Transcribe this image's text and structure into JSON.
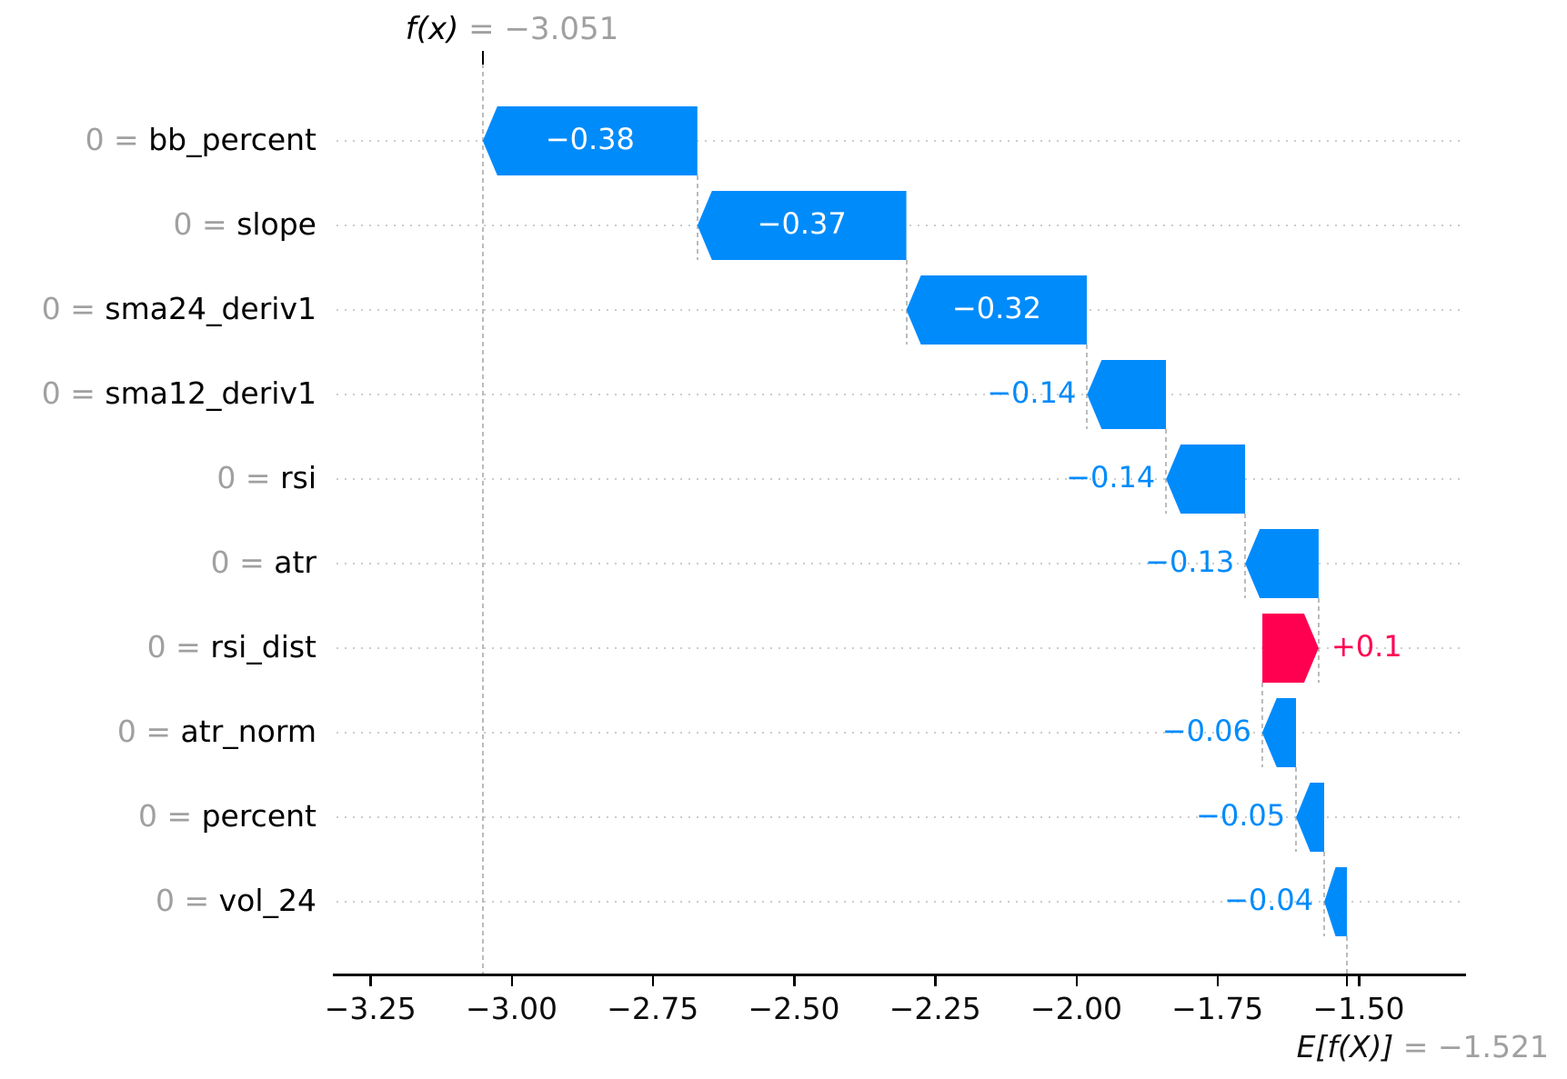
{
  "title": {
    "fx_name": "f(x)",
    "fx_eq": " = −3.051"
  },
  "base_label": {
    "e_name": "E[f(X)]",
    "e_eq": " = −1.521"
  },
  "chart_data": {
    "type": "waterfall",
    "title": "f(x) = −3.051",
    "fx_value": -3.051,
    "base_value": -1.521,
    "features": [
      {
        "prefix": "0 = ",
        "name": "bb_percent",
        "value": -0.38,
        "display": "−0.38"
      },
      {
        "prefix": "0 = ",
        "name": "slope",
        "value": -0.37,
        "display": "−0.37"
      },
      {
        "prefix": "0 = ",
        "name": "sma24_deriv1",
        "value": -0.32,
        "display": "−0.32"
      },
      {
        "prefix": "0 = ",
        "name": "sma12_deriv1",
        "value": -0.14,
        "display": "−0.14"
      },
      {
        "prefix": "0 = ",
        "name": "rsi",
        "value": -0.14,
        "display": "−0.14"
      },
      {
        "prefix": "0 = ",
        "name": "atr",
        "value": -0.13,
        "display": "−0.13"
      },
      {
        "prefix": "0 = ",
        "name": "rsi_dist",
        "value": 0.1,
        "display": "+0.1"
      },
      {
        "prefix": "0 = ",
        "name": "atr_norm",
        "value": -0.06,
        "display": "−0.06"
      },
      {
        "prefix": "0 = ",
        "name": "percent",
        "value": -0.05,
        "display": "−0.05"
      },
      {
        "prefix": "0 = ",
        "name": "vol_24",
        "value": -0.04,
        "display": "−0.04"
      }
    ],
    "x_ticks": [
      -3.25,
      -3.0,
      -2.75,
      -2.5,
      -2.25,
      -2.0,
      -1.75,
      -1.5
    ],
    "x_tick_labels": [
      "−3.25",
      "−3.00",
      "−2.75",
      "−2.50",
      "−2.25",
      "−2.00",
      "−1.75",
      "−1.50"
    ],
    "xlim": [
      -3.31,
      -1.312
    ],
    "grid": "dotted-horizontal",
    "colors": {
      "negative": "#008bfb",
      "positive": "#ff0051",
      "gridline": "#cccccc",
      "connector": "#bbbbbb",
      "muted_text": "#a0a0a0"
    }
  }
}
